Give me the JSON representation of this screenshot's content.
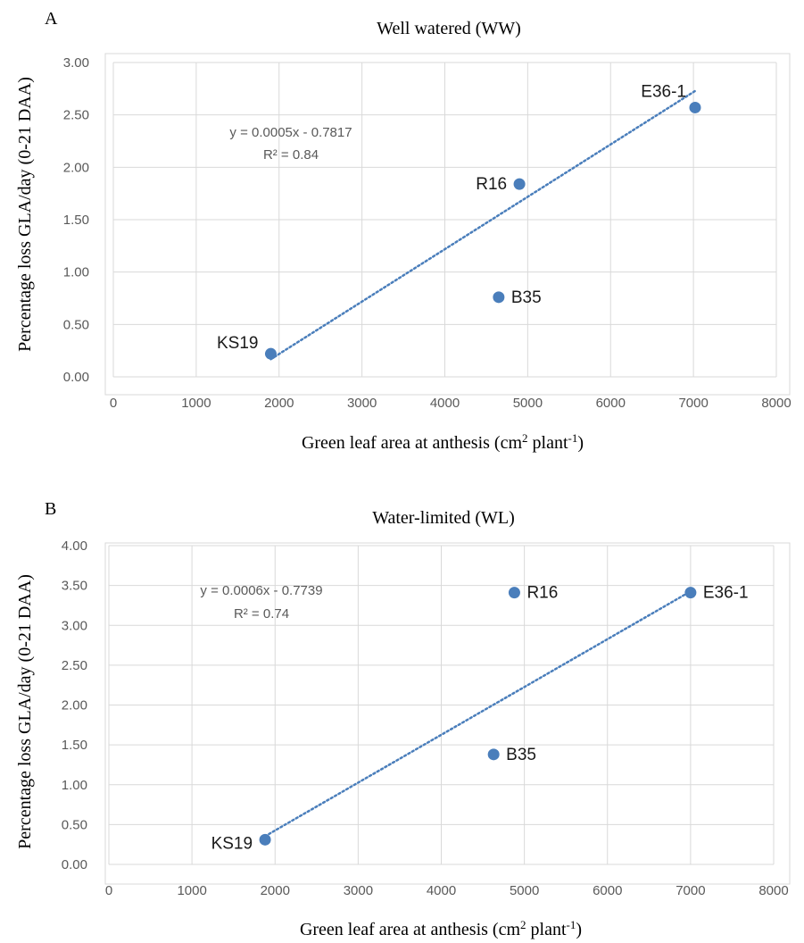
{
  "chart_data": [
    {
      "type": "scatter",
      "panel_label": "A",
      "title": "Well watered (WW)",
      "ylabel": "Percentage loss GLA/day (0-21 DAA)",
      "xlabel_parts": [
        "Green leaf area at anthesis (cm",
        "2",
        " plant",
        "-1",
        ")"
      ],
      "xlim": [
        0,
        8000
      ],
      "ylim": [
        0,
        3.0
      ],
      "x_ticks": [
        "0",
        "1000",
        "2000",
        "3000",
        "4000",
        "5000",
        "6000",
        "7000",
        "8000"
      ],
      "y_ticks": [
        "0.00",
        "0.50",
        "1.00",
        "1.50",
        "2.00",
        "2.50",
        "3.00"
      ],
      "grid": true,
      "marker_color": "#4a7ebb",
      "points": [
        {
          "label": "KS19",
          "x": 1900,
          "y": 0.22,
          "label_side": "left"
        },
        {
          "label": "B35",
          "x": 4650,
          "y": 0.76,
          "label_side": "right"
        },
        {
          "label": "R16",
          "x": 4900,
          "y": 1.84,
          "label_side": "left"
        },
        {
          "label": "E36-1",
          "x": 7020,
          "y": 2.57,
          "label_side": "above-left"
        }
      ],
      "trendline": {
        "slope": 0.0005,
        "intercept": -0.7817,
        "x_range": [
          1900,
          7020
        ],
        "style": "dotted"
      },
      "equation": "y = 0.0005x - 0.7817",
      "r_squared": "R² = 0.84"
    },
    {
      "type": "scatter",
      "panel_label": "B",
      "title": "Water-limited (WL)",
      "ylabel": "Percentage loss GLA/day (0-21 DAA)",
      "xlabel_parts": [
        "Green leaf area at anthesis (cm",
        "2",
        " plant",
        "-1",
        ")"
      ],
      "xlim": [
        0,
        8000
      ],
      "ylim": [
        0,
        4.0
      ],
      "x_ticks": [
        "0",
        "1000",
        "2000",
        "3000",
        "4000",
        "5000",
        "6000",
        "7000",
        "8000"
      ],
      "y_ticks": [
        "0.00",
        "0.50",
        "1.00",
        "1.50",
        "2.00",
        "2.50",
        "3.00",
        "3.50",
        "4.00"
      ],
      "grid": true,
      "marker_color": "#4a7ebb",
      "points": [
        {
          "label": "KS19",
          "x": 1880,
          "y": 0.31,
          "label_side": "left"
        },
        {
          "label": "B35",
          "x": 4630,
          "y": 1.38,
          "label_side": "right"
        },
        {
          "label": "R16",
          "x": 4880,
          "y": 3.41,
          "label_side": "right"
        },
        {
          "label": "E36-1",
          "x": 7000,
          "y": 3.41,
          "label_side": "right"
        }
      ],
      "trendline": {
        "slope": 0.0006,
        "intercept": -0.7739,
        "x_range": [
          1880,
          7000
        ],
        "style": "dotted"
      },
      "equation": "y = 0.0006x - 0.7739",
      "r_squared": "R² = 0.74"
    }
  ]
}
